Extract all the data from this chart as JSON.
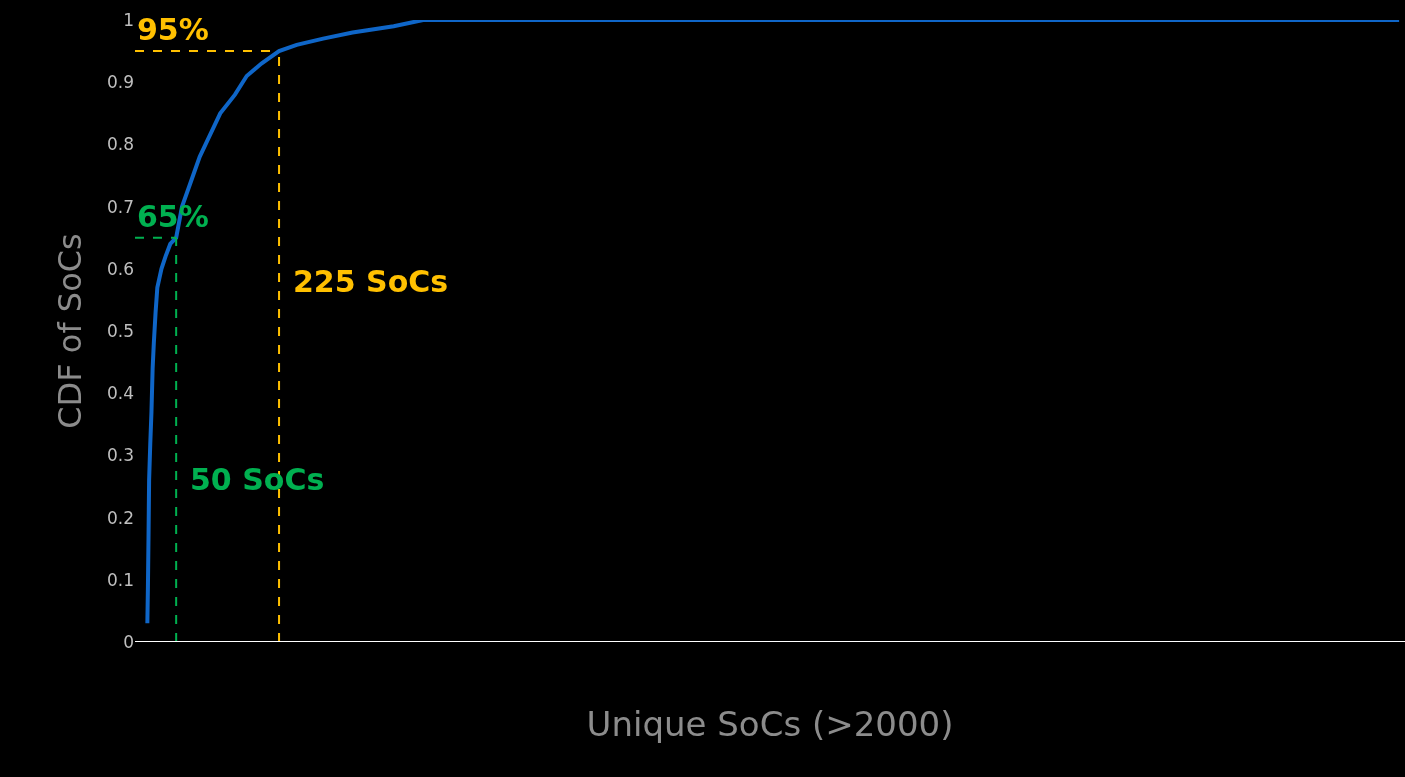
{
  "chart_data": {
    "type": "line",
    "xlabel": "Unique SoCs (>2000)",
    "ylabel": "CDF of SoCs",
    "x": [
      1,
      2,
      3,
      4,
      6,
      8,
      10,
      12,
      15,
      18,
      25,
      32,
      40,
      50,
      60,
      75,
      90,
      105,
      125,
      150,
      170,
      195,
      225,
      255,
      300,
      350,
      420,
      470,
      2130
    ],
    "series": [
      {
        "color": "#0f66c8",
        "values": [
          0.03,
          0.09,
          0.17,
          0.26,
          0.32,
          0.37,
          0.44,
          0.48,
          0.53,
          0.57,
          0.6,
          0.62,
          0.64,
          0.65,
          0.7,
          0.74,
          0.78,
          0.81,
          0.85,
          0.88,
          0.91,
          0.93,
          0.95,
          0.96,
          0.97,
          0.98,
          0.99,
          1.0,
          1.0
        ]
      }
    ],
    "xlim": [
      -20,
      2140
    ],
    "ylim": [
      0,
      1
    ],
    "yticks": [
      0,
      0.1,
      0.2,
      0.3,
      0.4,
      0.5,
      0.6,
      0.7,
      0.8,
      0.9,
      1
    ],
    "tick_labels": "y",
    "grid": false,
    "marker": "none",
    "line_style": "solid",
    "ref_lines": [
      {
        "axis": "y",
        "value": 0.95,
        "label": "95%",
        "color": "#ffc000",
        "line_style": "dashed"
      },
      {
        "axis": "x",
        "value": 225,
        "label": "225 SoCs",
        "color": "#ffc000",
        "line_style": "dashed"
      },
      {
        "axis": "y",
        "value": 0.65,
        "label": "65%",
        "color": "#00b050",
        "line_style": "dashed"
      },
      {
        "axis": "x",
        "value": 50,
        "label": "50 SoCs",
        "color": "#00b050",
        "line_style": "dashed"
      }
    ]
  }
}
